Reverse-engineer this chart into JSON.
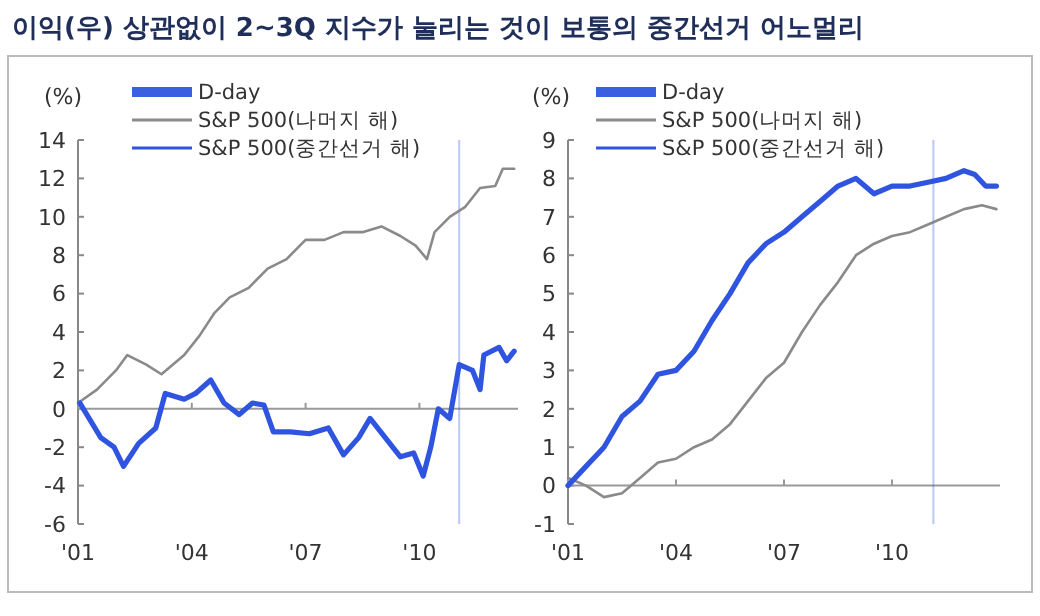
{
  "chart_data": [
    {
      "type": "line",
      "title": "이익(우) 상관없이 2~3Q 지수가 눌리는 것이 보통의 중간선거 어노멀리",
      "ylabel": "(%)",
      "legend": "top left",
      "xlim": [
        1,
        12.6
      ],
      "xticks": [
        {
          "value": 1,
          "label": "'01"
        },
        {
          "value": 4,
          "label": "'04"
        },
        {
          "value": 7,
          "label": "'07"
        },
        {
          "value": 10,
          "label": "'10"
        }
      ],
      "ylim": [
        -6,
        14
      ],
      "yticks": [
        -6,
        -4,
        -2,
        0,
        2,
        4,
        6,
        8,
        10,
        12,
        14
      ],
      "ref_lines": [
        {
          "axis": "x",
          "value": 11.05,
          "label": "D-day",
          "color": "#3a5fe0"
        }
      ],
      "series": [
        {
          "name": "S&P 500(나머지 해)",
          "color": "#8a8a8a",
          "x": [
            1,
            1.5,
            2,
            2.3,
            2.8,
            3.2,
            3.8,
            4.2,
            4.6,
            5,
            5.5,
            6,
            6.5,
            7,
            7.5,
            8,
            8.5,
            9,
            9.5,
            9.9,
            10.2,
            10.4,
            10.8,
            11.2,
            11.6,
            12,
            12.2,
            12.5
          ],
          "values": [
            0.3,
            1,
            2,
            2.8,
            2.3,
            1.8,
            2.8,
            3.8,
            5,
            5.8,
            6.3,
            7.3,
            7.8,
            8.8,
            8.8,
            9.2,
            9.2,
            9.5,
            9,
            8.5,
            7.8,
            9.2,
            10,
            10.5,
            11.5,
            11.6,
            12.5,
            12.5
          ]
        },
        {
          "name": "S&P 500(중간선거 해)",
          "color": "#2f55e0",
          "x": [
            1.05,
            1.6,
            1.95,
            2.2,
            2.6,
            3.05,
            3.3,
            3.8,
            4.1,
            4.5,
            4.85,
            5.25,
            5.6,
            5.9,
            6.15,
            6.6,
            7.1,
            7.6,
            8,
            8.4,
            8.7,
            9.1,
            9.5,
            9.85,
            10.1,
            10.3,
            10.5,
            10.8,
            11.05,
            11.4,
            11.6,
            11.7,
            12.1,
            12.3,
            12.5
          ],
          "values": [
            0.3,
            -1.5,
            -2,
            -3,
            -1.8,
            -1,
            0.8,
            0.5,
            0.8,
            1.5,
            0.3,
            -0.3,
            0.3,
            0.2,
            -1.2,
            -1.2,
            -1.3,
            -1,
            -2.4,
            -1.5,
            -0.5,
            -1.5,
            -2.5,
            -2.3,
            -3.5,
            -2,
            0,
            -0.5,
            2.3,
            2,
            1,
            2.8,
            3.2,
            2.5,
            3
          ]
        }
      ]
    },
    {
      "type": "line",
      "ylabel": "(%)",
      "legend": "top left",
      "xlim": [
        1,
        13
      ],
      "xticks": [
        {
          "value": 1,
          "label": "'01"
        },
        {
          "value": 4,
          "label": "'04"
        },
        {
          "value": 7,
          "label": "'07"
        },
        {
          "value": 10,
          "label": "'10"
        }
      ],
      "ylim": [
        -1,
        9
      ],
      "yticks": [
        -1,
        0,
        1,
        2,
        3,
        4,
        5,
        6,
        7,
        8,
        9
      ],
      "ref_lines": [
        {
          "axis": "x",
          "value": 11.15,
          "label": "D-day",
          "color": "#3a5fe0"
        }
      ],
      "series": [
        {
          "name": "S&P 500(나머지 해)",
          "color": "#8a8a8a",
          "x": [
            1,
            1.5,
            2,
            2.5,
            3,
            3.5,
            4,
            4.5,
            5,
            5.5,
            6,
            6.5,
            7,
            7.5,
            8,
            8.5,
            9,
            9.5,
            10,
            10.5,
            11,
            11.5,
            12,
            12.5,
            12.9
          ],
          "values": [
            0.2,
            0,
            -0.3,
            -0.2,
            0.2,
            0.6,
            0.7,
            1,
            1.2,
            1.6,
            2.2,
            2.8,
            3.2,
            4,
            4.7,
            5.3,
            6,
            6.3,
            6.5,
            6.6,
            6.8,
            7,
            7.2,
            7.3,
            7.2
          ]
        },
        {
          "name": "S&P 500(중간선거 해)",
          "color": "#2f55e0",
          "x": [
            1,
            1.5,
            2,
            2.5,
            3,
            3.5,
            4,
            4.5,
            5,
            5.5,
            6,
            6.5,
            7,
            7.5,
            8,
            8.5,
            9,
            9.5,
            10,
            10.5,
            11,
            11.5,
            12,
            12.3,
            12.6,
            12.9
          ],
          "values": [
            0,
            0.5,
            1,
            1.8,
            2.2,
            2.9,
            3,
            3.5,
            4.3,
            5,
            5.8,
            6.3,
            6.6,
            7,
            7.4,
            7.8,
            8,
            7.6,
            7.8,
            7.8,
            7.9,
            8,
            8.2,
            8.1,
            7.8,
            7.8
          ]
        }
      ]
    }
  ]
}
